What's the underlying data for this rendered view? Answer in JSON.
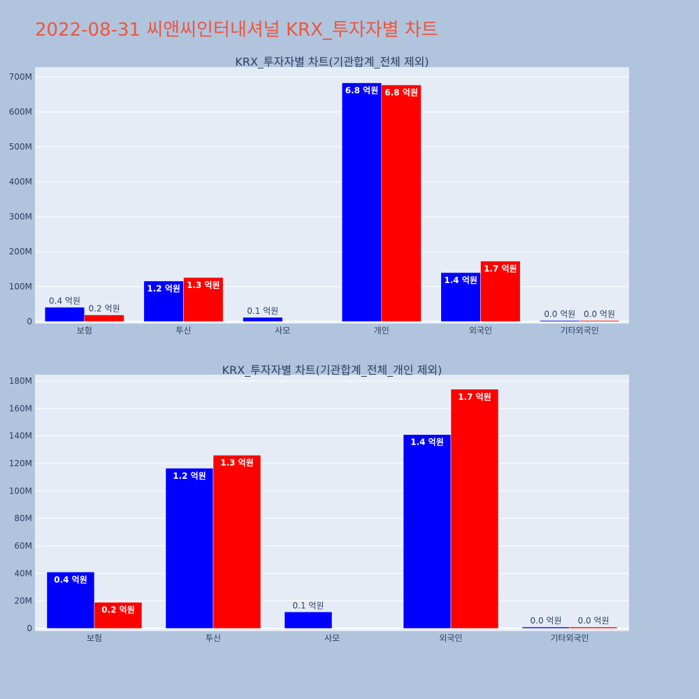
{
  "page": {
    "title": "2022-08-31 씨앤씨인터내셔널 KRX_투자자별 차트",
    "colors": {
      "background": "#b0c4de",
      "plot_bg": "#e5ecf6",
      "buy": "#0000ff",
      "sell": "#ff0000",
      "title": "#ef553b"
    }
  },
  "chart_data": [
    {
      "type": "bar",
      "title": "KRX_투자자별 차트(기관합계_전체 제외)",
      "categories": [
        "보험",
        "투신",
        "사모",
        "개인",
        "외국인",
        "기타외국인"
      ],
      "ylim": [
        0,
        700000000
      ],
      "yticks": [
        0,
        100000000,
        200000000,
        300000000,
        400000000,
        500000000,
        600000000,
        700000000
      ],
      "ytick_labels": [
        "0",
        "100M",
        "200M",
        "300M",
        "400M",
        "500M",
        "600M",
        "700M"
      ],
      "grid": true,
      "series": [
        {
          "color": "#0000ff",
          "values": [
            41000000,
            116000000,
            12000000,
            683000000,
            140000000,
            1000000
          ],
          "labels": [
            "0.4 억원",
            "1.2 억원",
            "0.1 억원",
            "6.8 억원",
            "1.4 억원",
            "0.0 억원"
          ]
        },
        {
          "color": "#ff0000",
          "values": [
            19000000,
            126000000,
            0,
            677000000,
            173000000,
            1000000
          ],
          "labels": [
            "0.2 억원",
            "1.3 억원",
            "",
            "6.8 억원",
            "1.7 억원",
            "0.0 억원"
          ]
        }
      ]
    },
    {
      "type": "bar",
      "title": "KRX_투자자별 차트(기관합계_전체_개인 제외)",
      "categories": [
        "보험",
        "투신",
        "사모",
        "외국인",
        "기타외국인"
      ],
      "ylim": [
        0,
        184000000
      ],
      "yticks": [
        0,
        20000000,
        40000000,
        60000000,
        80000000,
        100000000,
        120000000,
        140000000,
        160000000,
        180000000
      ],
      "ytick_labels": [
        "0",
        "20M",
        "40M",
        "60M",
        "80M",
        "100M",
        "120M",
        "140M",
        "160M",
        "180M"
      ],
      "grid": true,
      "series": [
        {
          "color": "#0000ff",
          "values": [
            41000000,
            116500000,
            12000000,
            141000000,
            1000000
          ],
          "labels": [
            "0.4 억원",
            "1.2 억원",
            "0.1 억원",
            "1.4 억원",
            "0.0 억원"
          ]
        },
        {
          "color": "#ff0000",
          "values": [
            19000000,
            126000000,
            0,
            174000000,
            1000000
          ],
          "labels": [
            "0.2 억원",
            "1.3 억원",
            "",
            "1.7 억원",
            "0.0 억원"
          ]
        }
      ]
    }
  ]
}
